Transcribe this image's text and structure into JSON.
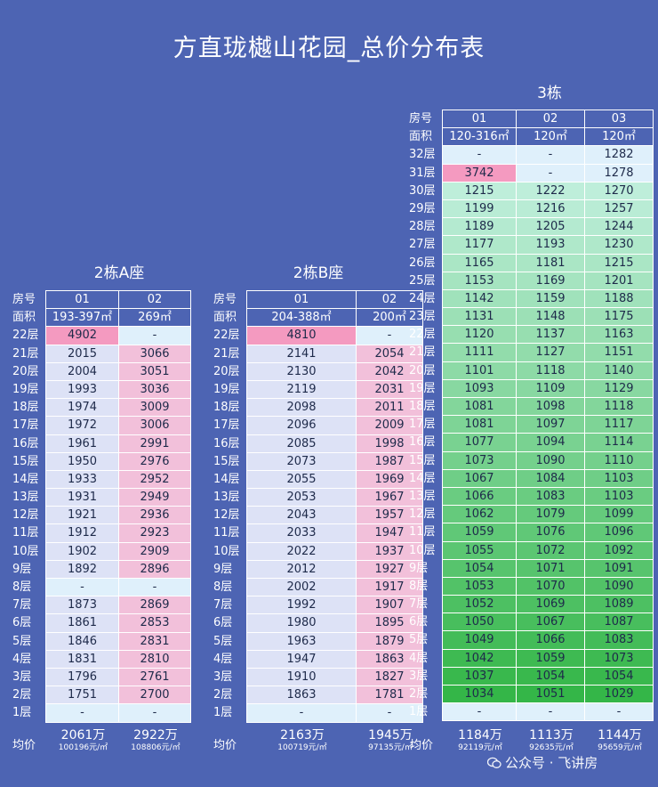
{
  "title": "方直珑樾山花园_总价分布表",
  "labels": {
    "room": "房号",
    "area": "面积",
    "avg": "均价"
  },
  "colors": {
    "pink": "#f2c0da",
    "lavender": "#dde2f6",
    "highlight": "#f49ac0",
    "empty": "#dff0fb"
  },
  "buildings": [
    {
      "name": "2栋A座",
      "units": [
        "01",
        "02"
      ],
      "areas": [
        "193-397㎡",
        "269㎡"
      ],
      "floors": [
        {
          "f": "22层",
          "v": [
            "4902",
            "-"
          ],
          "c": [
            "highlight",
            "empty"
          ]
        },
        {
          "f": "21层",
          "v": [
            "2015",
            "3066"
          ]
        },
        {
          "f": "20层",
          "v": [
            "2004",
            "3051"
          ]
        },
        {
          "f": "19层",
          "v": [
            "1993",
            "3036"
          ]
        },
        {
          "f": "18层",
          "v": [
            "1974",
            "3009"
          ]
        },
        {
          "f": "17层",
          "v": [
            "1972",
            "3006"
          ]
        },
        {
          "f": "16层",
          "v": [
            "1961",
            "2991"
          ]
        },
        {
          "f": "15层",
          "v": [
            "1950",
            "2976"
          ]
        },
        {
          "f": "14层",
          "v": [
            "1933",
            "2952"
          ]
        },
        {
          "f": "13层",
          "v": [
            "1931",
            "2949"
          ]
        },
        {
          "f": "12层",
          "v": [
            "1921",
            "2936"
          ]
        },
        {
          "f": "11层",
          "v": [
            "1912",
            "2923"
          ]
        },
        {
          "f": "10层",
          "v": [
            "1902",
            "2909"
          ]
        },
        {
          "f": "9层",
          "v": [
            "1892",
            "2896"
          ]
        },
        {
          "f": "8层",
          "v": [
            "-",
            "-"
          ],
          "c": [
            "empty",
            "empty"
          ]
        },
        {
          "f": "7层",
          "v": [
            "1873",
            "2869"
          ]
        },
        {
          "f": "6层",
          "v": [
            "1861",
            "2853"
          ]
        },
        {
          "f": "5层",
          "v": [
            "1846",
            "2831"
          ]
        },
        {
          "f": "4层",
          "v": [
            "1831",
            "2810"
          ]
        },
        {
          "f": "3层",
          "v": [
            "1796",
            "2761"
          ]
        },
        {
          "f": "2层",
          "v": [
            "1751",
            "2700"
          ]
        },
        {
          "f": "1层",
          "v": [
            "-",
            "-"
          ],
          "c": [
            "empty",
            "empty"
          ]
        }
      ],
      "avg": [
        {
          "total": "2061万",
          "unit": "100196元/㎡"
        },
        {
          "total": "2922万",
          "unit": "108806元/㎡"
        }
      ]
    },
    {
      "name": "2栋B座",
      "units": [
        "01",
        "02"
      ],
      "areas": [
        "204-388㎡",
        "200㎡"
      ],
      "floors": [
        {
          "f": "22层",
          "v": [
            "4810",
            "-"
          ],
          "c": [
            "highlight",
            "empty"
          ]
        },
        {
          "f": "21层",
          "v": [
            "2141",
            "2054"
          ]
        },
        {
          "f": "20层",
          "v": [
            "2130",
            "2042"
          ]
        },
        {
          "f": "19层",
          "v": [
            "2119",
            "2031"
          ]
        },
        {
          "f": "18层",
          "v": [
            "2098",
            "2011"
          ]
        },
        {
          "f": "17层",
          "v": [
            "2096",
            "2009"
          ]
        },
        {
          "f": "16层",
          "v": [
            "2085",
            "1998"
          ]
        },
        {
          "f": "15层",
          "v": [
            "2073",
            "1987"
          ]
        },
        {
          "f": "14层",
          "v": [
            "2055",
            "1969"
          ]
        },
        {
          "f": "13层",
          "v": [
            "2053",
            "1967"
          ]
        },
        {
          "f": "12层",
          "v": [
            "2043",
            "1957"
          ]
        },
        {
          "f": "11层",
          "v": [
            "2033",
            "1947"
          ]
        },
        {
          "f": "10层",
          "v": [
            "2022",
            "1937"
          ]
        },
        {
          "f": "9层",
          "v": [
            "2012",
            "1927"
          ]
        },
        {
          "f": "8层",
          "v": [
            "2002",
            "1917"
          ]
        },
        {
          "f": "7层",
          "v": [
            "1992",
            "1907"
          ]
        },
        {
          "f": "6层",
          "v": [
            "1980",
            "1895"
          ]
        },
        {
          "f": "5层",
          "v": [
            "1963",
            "1879"
          ]
        },
        {
          "f": "4层",
          "v": [
            "1947",
            "1863"
          ]
        },
        {
          "f": "3层",
          "v": [
            "1910",
            "1827"
          ]
        },
        {
          "f": "2层",
          "v": [
            "1863",
            "1781"
          ]
        },
        {
          "f": "1层",
          "v": [
            "-",
            "-"
          ],
          "c": [
            "empty",
            "empty"
          ]
        }
      ],
      "avg": [
        {
          "total": "2163万",
          "unit": "100719元/㎡"
        },
        {
          "total": "1945万",
          "unit": "97135元/㎡"
        }
      ]
    },
    {
      "name": "3栋",
      "units": [
        "01",
        "02",
        "03"
      ],
      "areas": [
        "120-316㎡",
        "120㎡",
        "120㎡"
      ],
      "floors": [
        {
          "f": "32层",
          "v": [
            "-",
            "-",
            "1282"
          ],
          "c": [
            "empty",
            "empty",
            "empty"
          ]
        },
        {
          "f": "31层",
          "v": [
            "3742",
            "-",
            "1278"
          ],
          "c": [
            "highlight",
            "empty",
            "empty"
          ]
        },
        {
          "f": "30层",
          "v": [
            "1215",
            "1222",
            "1270"
          ]
        },
        {
          "f": "29层",
          "v": [
            "1199",
            "1216",
            "1257"
          ]
        },
        {
          "f": "28层",
          "v": [
            "1189",
            "1205",
            "1244"
          ]
        },
        {
          "f": "27层",
          "v": [
            "1177",
            "1193",
            "1230"
          ]
        },
        {
          "f": "26层",
          "v": [
            "1165",
            "1181",
            "1215"
          ]
        },
        {
          "f": "25层",
          "v": [
            "1153",
            "1169",
            "1201"
          ]
        },
        {
          "f": "24层",
          "v": [
            "1142",
            "1159",
            "1188"
          ]
        },
        {
          "f": "23层",
          "v": [
            "1131",
            "1148",
            "1175"
          ]
        },
        {
          "f": "22层",
          "v": [
            "1120",
            "1137",
            "1163"
          ]
        },
        {
          "f": "21层",
          "v": [
            "1111",
            "1127",
            "1151"
          ]
        },
        {
          "f": "20层",
          "v": [
            "1101",
            "1118",
            "1140"
          ]
        },
        {
          "f": "19层",
          "v": [
            "1093",
            "1109",
            "1129"
          ]
        },
        {
          "f": "18层",
          "v": [
            "1081",
            "1098",
            "1118"
          ]
        },
        {
          "f": "17层",
          "v": [
            "1081",
            "1097",
            "1117"
          ]
        },
        {
          "f": "16层",
          "v": [
            "1077",
            "1094",
            "1114"
          ]
        },
        {
          "f": "15层",
          "v": [
            "1073",
            "1090",
            "1110"
          ]
        },
        {
          "f": "14层",
          "v": [
            "1067",
            "1084",
            "1103"
          ]
        },
        {
          "f": "13层",
          "v": [
            "1066",
            "1083",
            "1103"
          ]
        },
        {
          "f": "12层",
          "v": [
            "1062",
            "1079",
            "1099"
          ]
        },
        {
          "f": "11层",
          "v": [
            "1059",
            "1076",
            "1096"
          ]
        },
        {
          "f": "10层",
          "v": [
            "1055",
            "1072",
            "1092"
          ]
        },
        {
          "f": "9层",
          "v": [
            "1054",
            "1071",
            "1091"
          ]
        },
        {
          "f": "8层",
          "v": [
            "1053",
            "1070",
            "1090"
          ]
        },
        {
          "f": "7层",
          "v": [
            "1052",
            "1069",
            "1089"
          ]
        },
        {
          "f": "6层",
          "v": [
            "1050",
            "1067",
            "1087"
          ]
        },
        {
          "f": "5层",
          "v": [
            "1049",
            "1066",
            "1083"
          ]
        },
        {
          "f": "4层",
          "v": [
            "1042",
            "1059",
            "1073"
          ]
        },
        {
          "f": "3层",
          "v": [
            "1037",
            "1054",
            "1054"
          ]
        },
        {
          "f": "2层",
          "v": [
            "1034",
            "1051",
            "1029"
          ]
        },
        {
          "f": "1层",
          "v": [
            "-",
            "-",
            "-"
          ],
          "c": [
            "empty",
            "empty",
            "empty"
          ]
        }
      ],
      "avg": [
        {
          "total": "1184万",
          "unit": "92119元/㎡"
        },
        {
          "total": "1113万",
          "unit": "92635元/㎡"
        },
        {
          "total": "1144万",
          "unit": "95659元/㎡"
        }
      ]
    }
  ],
  "watermark": {
    "text": "公众号 · 飞讲房",
    "icon": "wechat-icon"
  }
}
